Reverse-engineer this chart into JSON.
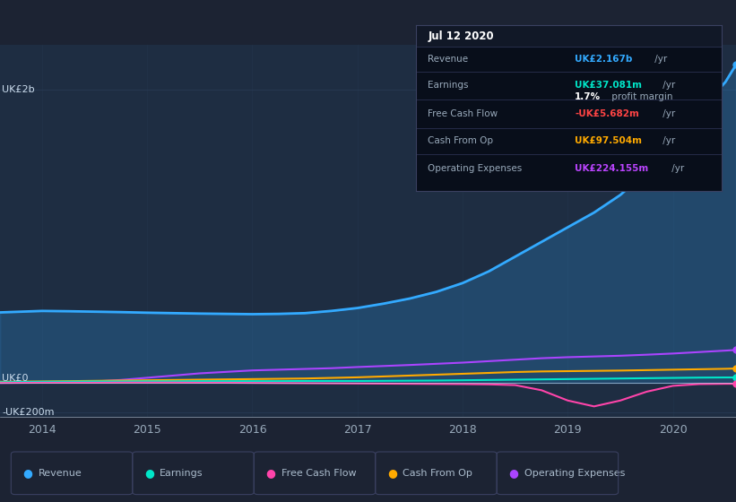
{
  "bg_color": "#1c2333",
  "plot_bg_color": "#1e2d42",
  "grid_color": "#2a3f5a",
  "title_box": {
    "date": "Jul 12 2020",
    "rows": [
      {
        "label": "Revenue",
        "value": "UK£2.167b",
        "unit": " /yr",
        "value_color": "#33aaff"
      },
      {
        "label": "Earnings",
        "value": "UK£37.081m",
        "unit": " /yr",
        "value_color": "#00e6c8"
      },
      {
        "label": "",
        "value": "1.7%",
        "unit": " profit margin",
        "value_color": "#ffffff"
      },
      {
        "label": "Free Cash Flow",
        "value": "-UK£5.682m",
        "unit": " /yr",
        "value_color": "#ff4444"
      },
      {
        "label": "Cash From Op",
        "value": "UK£97.504m",
        "unit": " /yr",
        "value_color": "#ffaa00"
      },
      {
        "label": "Operating Expenses",
        "value": "UK£224.155m",
        "unit": " /yr",
        "value_color": "#bb44ff"
      }
    ]
  },
  "x_years": [
    2013.6,
    2014.0,
    2014.25,
    2014.5,
    2014.75,
    2015.0,
    2015.25,
    2015.5,
    2015.75,
    2016.0,
    2016.25,
    2016.5,
    2016.75,
    2017.0,
    2017.25,
    2017.5,
    2017.75,
    2018.0,
    2018.25,
    2018.5,
    2018.75,
    2019.0,
    2019.25,
    2019.5,
    2019.75,
    2020.0,
    2020.25,
    2020.5,
    2020.6
  ],
  "revenue": [
    480,
    490,
    488,
    485,
    482,
    478,
    475,
    472,
    470,
    468,
    470,
    475,
    490,
    510,
    540,
    575,
    620,
    680,
    760,
    860,
    960,
    1060,
    1160,
    1280,
    1440,
    1640,
    1850,
    2050,
    2167
  ],
  "earnings": [
    5,
    8,
    9,
    10,
    10,
    11,
    11,
    12,
    12,
    12,
    12,
    13,
    13,
    13,
    14,
    15,
    16,
    18,
    20,
    22,
    24,
    26,
    28,
    30,
    32,
    34,
    36,
    37,
    37
  ],
  "free_cash": [
    0,
    1,
    1,
    1,
    2,
    2,
    2,
    1,
    1,
    0,
    -1,
    -2,
    -3,
    -4,
    -5,
    -6,
    -7,
    -8,
    -10,
    -15,
    -50,
    -120,
    -160,
    -120,
    -60,
    -20,
    -8,
    -6,
    -6
  ],
  "cash_op": [
    8,
    10,
    12,
    14,
    16,
    18,
    20,
    22,
    24,
    26,
    28,
    30,
    34,
    38,
    44,
    50,
    56,
    62,
    68,
    74,
    78,
    80,
    82,
    84,
    87,
    90,
    93,
    96,
    98
  ],
  "op_expenses": [
    0,
    2,
    5,
    10,
    20,
    35,
    50,
    65,
    75,
    85,
    90,
    95,
    100,
    108,
    115,
    122,
    130,
    138,
    148,
    158,
    168,
    175,
    180,
    185,
    192,
    200,
    210,
    220,
    224
  ],
  "colors": {
    "revenue": "#33aaff",
    "earnings": "#00e6c8",
    "free_cash": "#ff44aa",
    "cash_op": "#ffaa00",
    "op_expenses": "#aa44ff"
  },
  "ylim": [
    -230,
    2300
  ],
  "yticks": [
    -200,
    0,
    2000
  ],
  "ytick_labels": [
    "-UK£200m",
    "UK£0",
    "UK£2b"
  ],
  "xtick_positions": [
    2014,
    2015,
    2016,
    2017,
    2018,
    2019,
    2020
  ],
  "xtick_labels": [
    "2014",
    "2015",
    "2016",
    "2017",
    "2018",
    "2019",
    "2020"
  ],
  "legend_items": [
    {
      "label": "Revenue",
      "color": "#33aaff"
    },
    {
      "label": "Earnings",
      "color": "#00e6c8"
    },
    {
      "label": "Free Cash Flow",
      "color": "#ff44aa"
    },
    {
      "label": "Cash From Op",
      "color": "#ffaa00"
    },
    {
      "label": "Operating Expenses",
      "color": "#aa44ff"
    }
  ]
}
